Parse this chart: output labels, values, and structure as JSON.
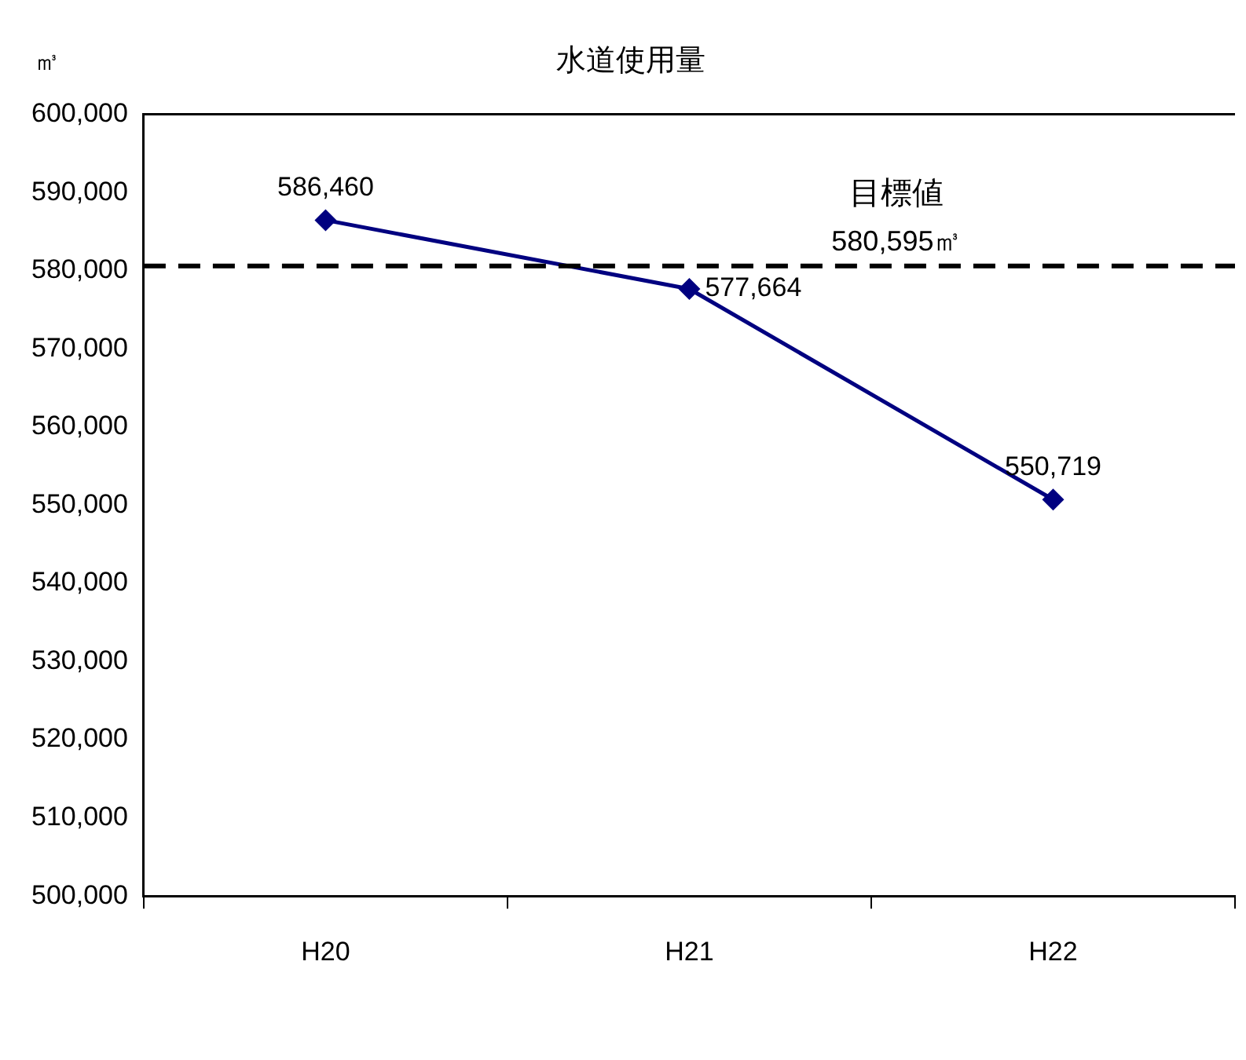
{
  "chart_data": {
    "type": "line",
    "title": "水道使用量",
    "ylabel": "㎥",
    "categories": [
      "H20",
      "H21",
      "H22"
    ],
    "series": [
      {
        "color": "#000080",
        "values": [
          586460,
          577664,
          550719
        ],
        "value_labels": [
          "586,460",
          "577,664",
          "550,719"
        ]
      }
    ],
    "ylim": [
      500000,
      600000
    ],
    "yticks": [
      {
        "value": 500000,
        "label": "500,000"
      },
      {
        "value": 510000,
        "label": "510,000"
      },
      {
        "value": 520000,
        "label": "520,000"
      },
      {
        "value": 530000,
        "label": "530,000"
      },
      {
        "value": 540000,
        "label": "540,000"
      },
      {
        "value": 550000,
        "label": "550,000"
      },
      {
        "value": 560000,
        "label": "560,000"
      },
      {
        "value": 570000,
        "label": "570,000"
      },
      {
        "value": 580000,
        "label": "580,000"
      },
      {
        "value": 590000,
        "label": "590,000"
      },
      {
        "value": 600000,
        "label": "600,000"
      }
    ],
    "ref_lines": [
      {
        "axis": "y",
        "value": 580595,
        "label": "目標値\n580,595㎥",
        "color": "#000000",
        "line_style": "dashed"
      }
    ],
    "marker": "diamond",
    "line_style": "solid",
    "grid": false,
    "legend": false
  }
}
